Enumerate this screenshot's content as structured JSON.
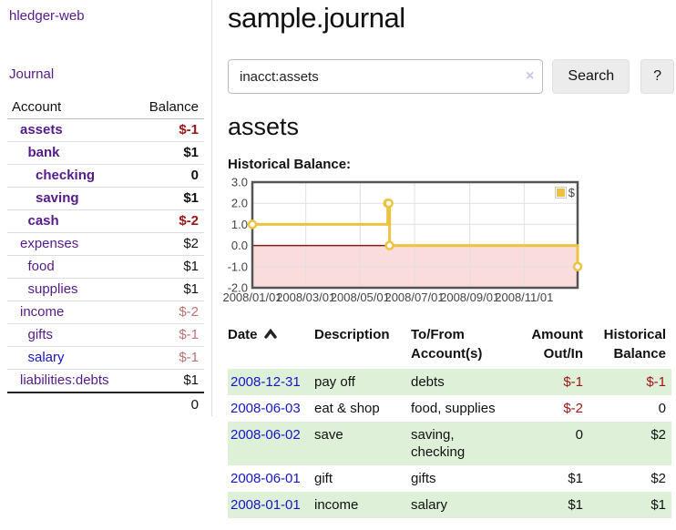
{
  "sidebar": {
    "app_title": "hledger-web",
    "journal_label": "Journal",
    "accounts_table": {
      "headers": {
        "account": "Account",
        "balance": "Balance"
      },
      "rows": [
        {
          "account": "assets",
          "balance": "$-1",
          "indent": 1,
          "bold": true,
          "balance_color": "negative"
        },
        {
          "account": "bank",
          "balance": "$1",
          "indent": 2,
          "bold": true,
          "balance_color": "normal"
        },
        {
          "account": "checking",
          "balance": "0",
          "indent": 3,
          "bold": true,
          "balance_color": "normal"
        },
        {
          "account": "saving",
          "balance": "$1",
          "indent": 3,
          "bold": true,
          "balance_color": "normal"
        },
        {
          "account": "cash",
          "balance": "$-2",
          "indent": 2,
          "bold": true,
          "balance_color": "negative"
        },
        {
          "account": "expenses",
          "balance": "$2",
          "indent": 1,
          "bold": false,
          "balance_color": "normal"
        },
        {
          "account": "food",
          "balance": "$1",
          "indent": 2,
          "bold": false,
          "balance_color": "normal"
        },
        {
          "account": "supplies",
          "balance": "$1",
          "indent": 2,
          "bold": false,
          "balance_color": "normal"
        },
        {
          "account": "income",
          "balance": "$-2",
          "indent": 1,
          "bold": false,
          "balance_color": "negative-light"
        },
        {
          "account": "gifts",
          "balance": "$-1",
          "indent": 2,
          "bold": false,
          "balance_color": "negative-light"
        },
        {
          "account": "salary",
          "balance": "$-1",
          "indent": 2,
          "bold": false,
          "balance_color": "negative-light",
          "link_color": "blue"
        },
        {
          "account": "liabilities:debts",
          "balance": "$1",
          "indent": 1,
          "bold": false,
          "balance_color": "normal"
        }
      ],
      "total": "0"
    }
  },
  "main": {
    "title": "sample.journal",
    "search": {
      "value": "inacct:assets",
      "clear_icon": "×",
      "button_label": "Search",
      "help_label": "?"
    },
    "account_heading": "assets",
    "chart_label": "Historical Balance:"
  },
  "chart_data": {
    "type": "line",
    "step": true,
    "title": "Historical Balance:",
    "legend": [
      {
        "label": "$",
        "color": "#edc240"
      }
    ],
    "legend_position": "top-right",
    "points": [
      {
        "date": "2008-01-01",
        "value": 1
      },
      {
        "date": "2008-06-01",
        "value": 2
      },
      {
        "date": "2008-06-02",
        "value": 2
      },
      {
        "date": "2008-06-03",
        "value": 0
      },
      {
        "date": "2008-12-31",
        "value": -1
      }
    ],
    "x_ticks": [
      "2008/01/01",
      "2008/03/01",
      "2008/05/01",
      "2008/07/01",
      "2008/09/01",
      "2008/11/01"
    ],
    "y_ticks": [
      3.0,
      2.0,
      1.0,
      0.0,
      -1.0,
      -2.0
    ],
    "ylim": [
      -2,
      3
    ],
    "xlim_dates": [
      "2008-01-01",
      "2008-12-31"
    ],
    "grid": true,
    "line_color": "#edc240",
    "marker_fill": "#ffffff",
    "negative_region_color": "#fbdcdc",
    "zero_line_color": "#8b1a1a",
    "border_color": "#545454",
    "gridline_color": "#e0e0e0"
  },
  "register_table": {
    "headers": {
      "date": "Date",
      "sort_icon": "chevron-up-icon",
      "description": "Description",
      "tofrom": "To/From Account(s)",
      "amount": "Amount Out/In",
      "balance": "Historical Balance"
    },
    "rows": [
      {
        "date": "2008-12-31",
        "description": "pay off",
        "accounts": "debts",
        "amount": "$-1",
        "balance": "$-1",
        "amount_negative": true,
        "balance_negative": true
      },
      {
        "date": "2008-06-03",
        "description": "eat & shop",
        "accounts": "food, supplies",
        "amount": "$-2",
        "balance": "0",
        "amount_negative": true,
        "balance_negative": false
      },
      {
        "date": "2008-06-02",
        "description": "save",
        "accounts": "saving, checking",
        "amount": "0",
        "balance": "$2",
        "amount_negative": false,
        "balance_negative": false
      },
      {
        "date": "2008-06-01",
        "description": "gift",
        "accounts": "gifts",
        "amount": "$1",
        "balance": "$2",
        "amount_negative": false,
        "balance_negative": false
      },
      {
        "date": "2008-01-01",
        "description": "income",
        "accounts": "salary",
        "amount": "$1",
        "balance": "$1",
        "amount_negative": false,
        "balance_negative": false
      }
    ]
  },
  "colors": {
    "accent_purple": "#551a8b",
    "link_blue": "#1515cc",
    "negative": "#9d1414",
    "negative_light": "#bd7274",
    "row_green": "#dff0d8",
    "chart_line": "#edc240"
  }
}
